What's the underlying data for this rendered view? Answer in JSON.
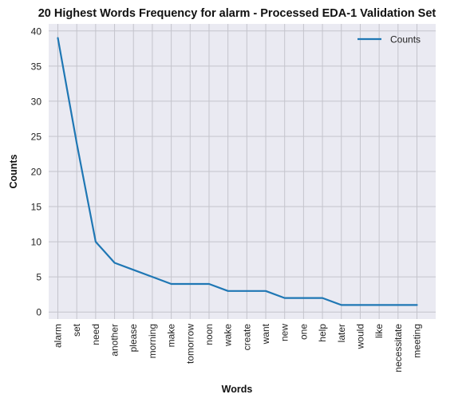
{
  "chart_data": {
    "type": "line",
    "title": "20 Highest Words Frequency for alarm - Processed EDA-1 Validation Set",
    "xlabel": "Words",
    "ylabel": "Counts",
    "categories": [
      "alarm",
      "set",
      "need",
      "another",
      "please",
      "morning",
      "make",
      "tomorrow",
      "noon",
      "wake",
      "create",
      "want",
      "new",
      "one",
      "help",
      "later",
      "would",
      "like",
      "necessitate",
      "meeting"
    ],
    "series": [
      {
        "name": "Counts",
        "values": [
          39,
          24,
          10,
          7,
          6,
          5,
          4,
          4,
          4,
          3,
          3,
          3,
          2,
          2,
          2,
          1,
          1,
          1,
          1,
          1
        ]
      }
    ],
    "ylim": [
      -1,
      41
    ],
    "yticks": [
      0,
      5,
      10,
      15,
      20,
      25,
      30,
      35,
      40
    ],
    "grid": true,
    "legend_position": "top-right",
    "colors": {
      "line": "#1f77b4",
      "plot_bg": "#eaeaf2",
      "grid": "#c4c4cc"
    }
  }
}
